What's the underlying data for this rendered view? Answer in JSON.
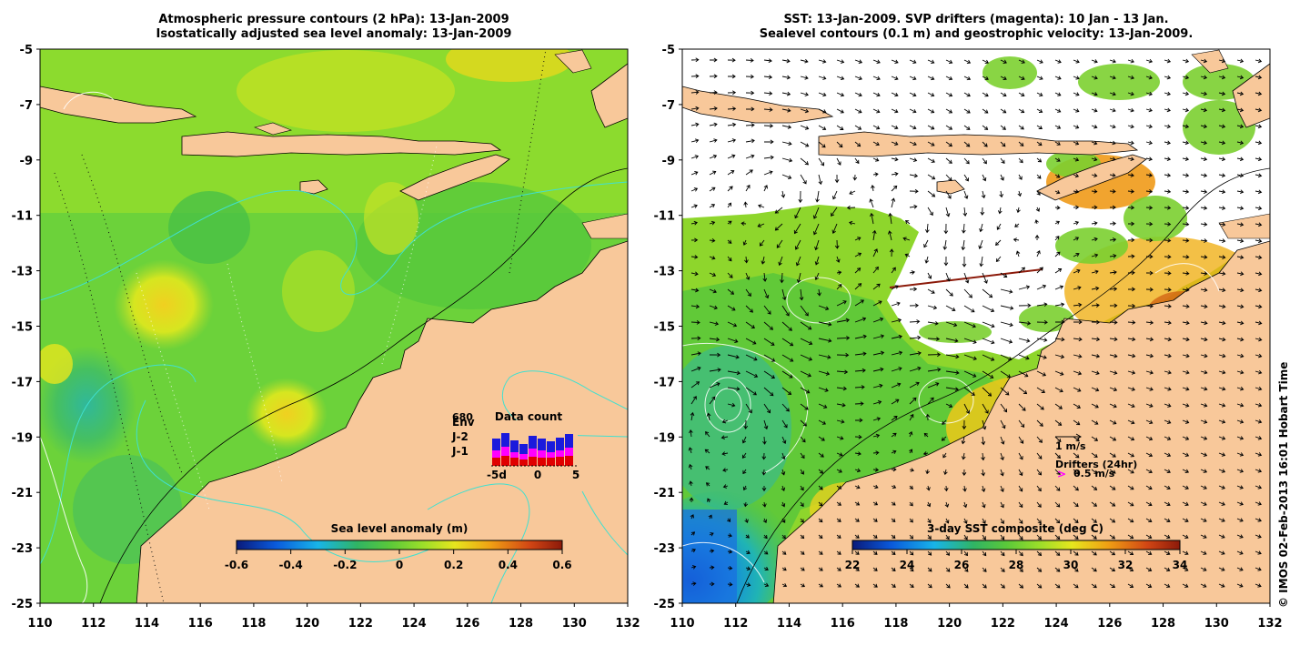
{
  "left_panel": {
    "title_line1": "Atmospheric pressure contours (2 hPa): 13-Jan-2009",
    "title_line2": "Isostatically adjusted sea level anomaly: 13-Jan-2009",
    "colorbar": {
      "label": "Sea level anomaly (m)",
      "ticks": [
        "-0.6",
        "-0.4",
        "-0.2",
        "0",
        "0.2",
        "0.4",
        "0.6"
      ]
    },
    "data_count": {
      "title": "Data count",
      "series_labels": [
        "Env",
        "J-2",
        "J-1"
      ],
      "series_colors": [
        "#1a1adc",
        "#ff00ff",
        "#e00000"
      ],
      "top_value": "680",
      "x_ticks": [
        "-5d",
        "0",
        "5"
      ]
    }
  },
  "right_panel": {
    "title_line1": "SST: 13-Jan-2009. SVP drifters (magenta): 10 Jan - 13 Jan.",
    "title_line2": "Sealevel contours (0.1 m) and geostrophic velocity: 13-Jan-2009.",
    "colorbar": {
      "label": "3-day SST composite (deg C)",
      "ticks": [
        "22",
        "24",
        "26",
        "28",
        "30",
        "32",
        "34"
      ]
    },
    "velocity_legend": "1 m/s",
    "drifter_legend_title": "Drifters (24hr)",
    "drifter_legend_speed": "0.5 m/s"
  },
  "axes": {
    "lon_ticks": [
      "110",
      "112",
      "114",
      "116",
      "118",
      "120",
      "122",
      "124",
      "126",
      "128",
      "130",
      "132"
    ],
    "lat_ticks": [
      "-5",
      "-7",
      "-9",
      "-11",
      "-13",
      "-15",
      "-17",
      "-19",
      "-21",
      "-23",
      "-25"
    ],
    "lon_range": [
      110,
      132
    ],
    "lat_range": [
      -25,
      -5
    ]
  },
  "credit": "© IMOS 02-Feb-2013 16:01 Hobart Time",
  "colors": {
    "land": "#f8c89a",
    "sla_colormap": [
      "#0a1a7a",
      "#0a5adc",
      "#18b4e8",
      "#30b464",
      "#5ac83a",
      "#9ade2a",
      "#e6e61e",
      "#f0a014",
      "#d24614",
      "#8c1a0a"
    ],
    "sst_colormap": [
      "#0a1a7a",
      "#0a5adc",
      "#18b4e8",
      "#30b464",
      "#5ac83a",
      "#9ade2a",
      "#e6e61e",
      "#f0a014",
      "#d24614",
      "#8c1a0a"
    ]
  }
}
